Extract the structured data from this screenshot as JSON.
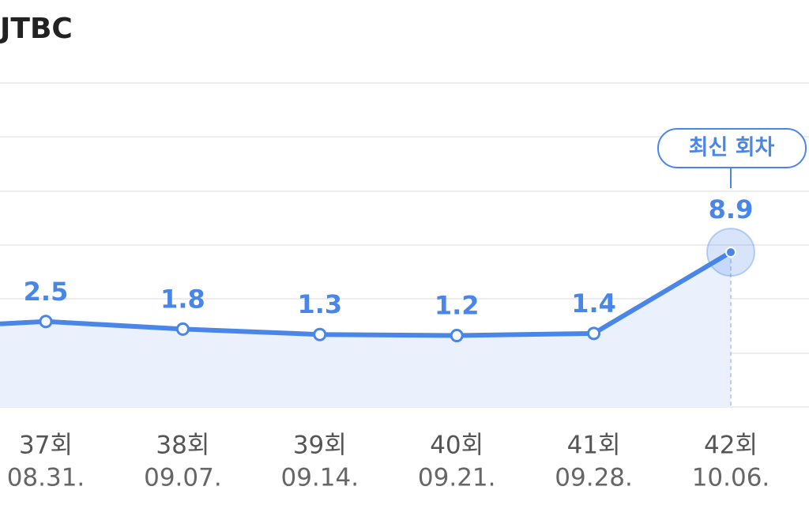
{
  "chart_data": {
    "type": "line",
    "title": "JTBC",
    "categories": [
      "37회",
      "38회",
      "39회",
      "40회",
      "41회",
      "42회"
    ],
    "dates": [
      "08.31.",
      "09.07.",
      "09.14.",
      "09.21.",
      "09.28.",
      "10.06."
    ],
    "series": [
      {
        "name": "JTBC",
        "color": "#4a86e8",
        "values": [
          2.5,
          1.8,
          1.3,
          1.2,
          1.4,
          8.9
        ]
      }
    ],
    "annotation": "최신 회차"
  }
}
